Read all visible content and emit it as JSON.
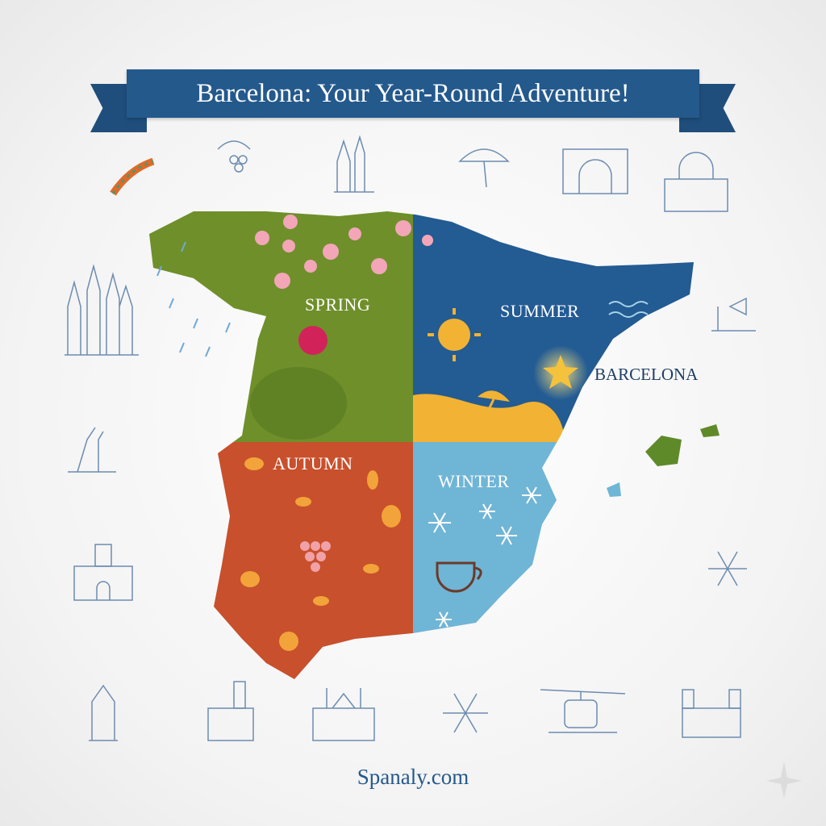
{
  "title": "Barcelona: Your Year-Round Adventure!",
  "map": {
    "seasons": [
      {
        "label": "SPRING",
        "color": "#6f8f2a"
      },
      {
        "label": "SUMMER",
        "color": "#235b93"
      },
      {
        "label": "AUTUMN",
        "color": "#c8502c"
      },
      {
        "label": "WINTER",
        "color": "#6fb5d6"
      }
    ],
    "city_label": "BARCELONA",
    "accent_yellow": "#f2b233"
  },
  "icons": [
    "gaudi-lizard-icon",
    "grapes-icon",
    "sagrada-familia-icon",
    "beach-umbrella-icon",
    "arc-de-triomf-icon",
    "church-icon",
    "cathedral-icon",
    "columbus-monument-icon",
    "monument-icon",
    "sailing-ship-icon",
    "palace-icon",
    "snowflake-icon",
    "cable-car-icon",
    "castle-icon"
  ],
  "footer": "Spanaly.com"
}
